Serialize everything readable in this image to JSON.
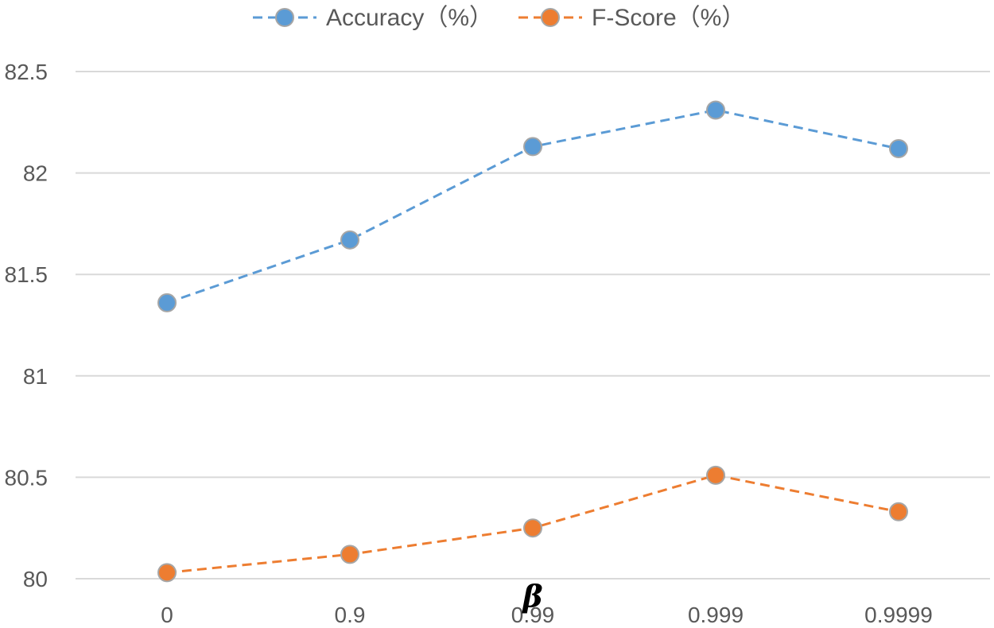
{
  "chart_data": {
    "type": "line",
    "title": "",
    "xlabel": "",
    "ylabel": "",
    "categories": [
      "0",
      "0.9",
      "0.99",
      "0.999",
      "0.9999"
    ],
    "series": [
      {
        "name": "Accuracy（%）",
        "values": [
          81.36,
          81.67,
          82.13,
          82.31,
          82.12
        ],
        "color": "#5B9BD5",
        "line_style": "dashed",
        "marker": "circle"
      },
      {
        "name": "F-Score（%）",
        "values": [
          80.03,
          80.12,
          80.25,
          80.51,
          80.33
        ],
        "color": "#ED7D31",
        "line_style": "dashed",
        "marker": "circle"
      }
    ],
    "ylim": [
      80,
      82.5
    ],
    "yticks": [
      "80",
      "80.5",
      "81",
      "81.5",
      "82",
      "82.5"
    ],
    "grid": true,
    "legend_position": "top-center",
    "annotations": [
      {
        "text": "β",
        "category": "0.99",
        "y": 79.9
      }
    ]
  }
}
